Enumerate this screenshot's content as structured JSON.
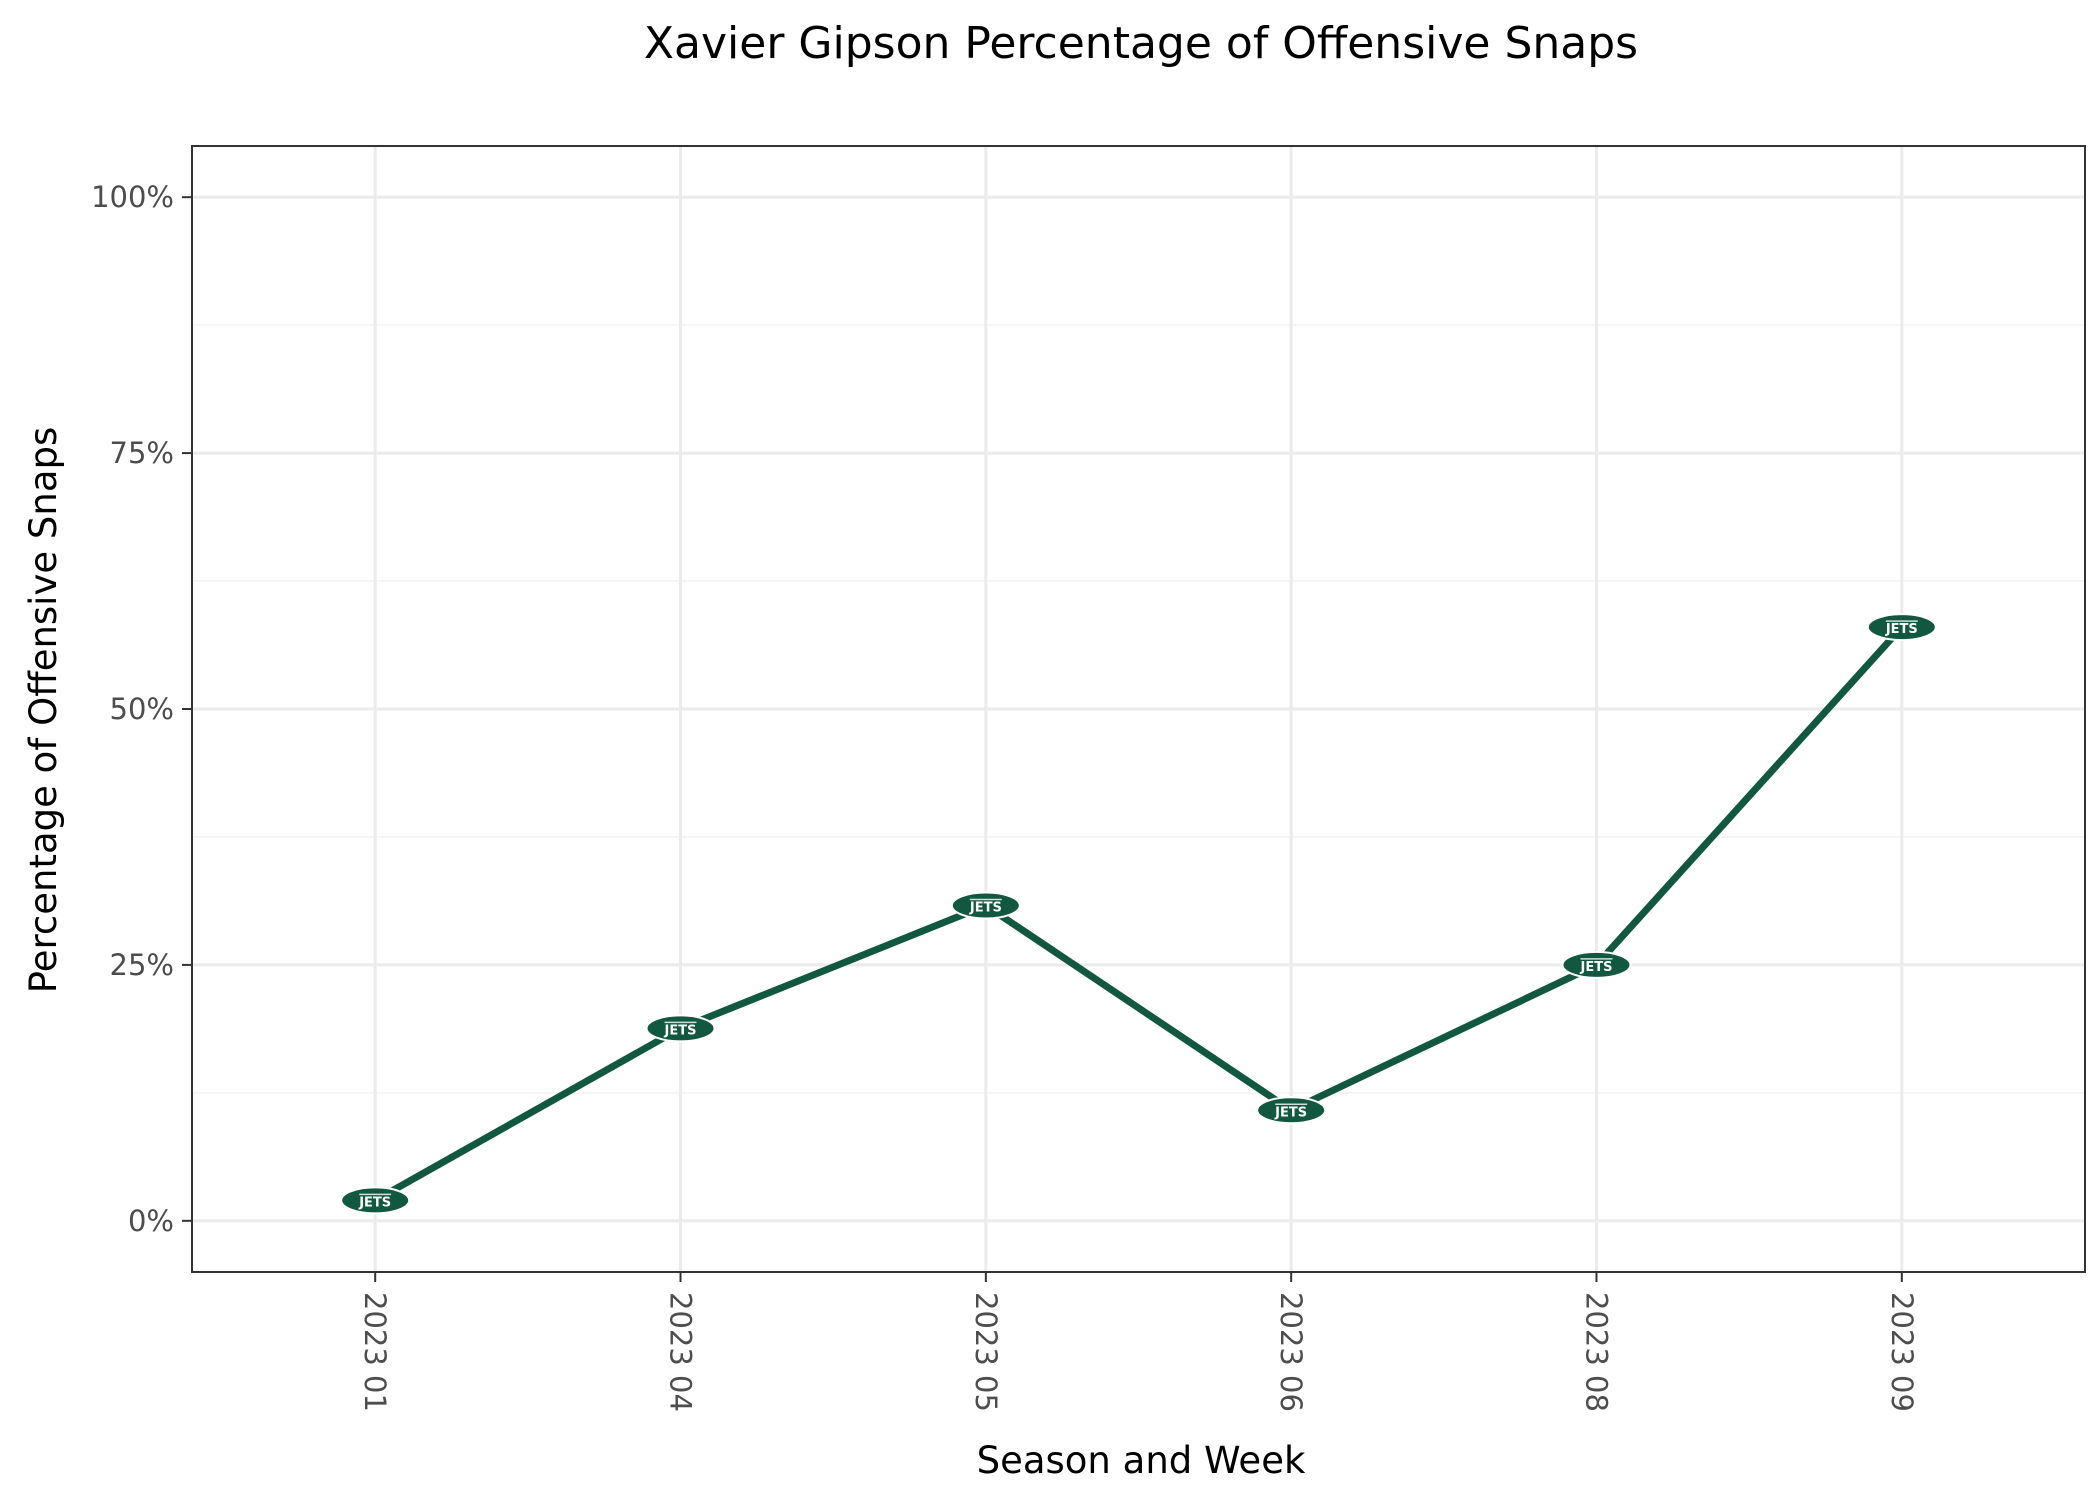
{
  "chart_data": {
    "type": "line",
    "title": "Xavier Gipson Percentage of Offensive Snaps",
    "xlabel": "Season and Week",
    "ylabel": "Percentage of Offensive Snaps",
    "categories": [
      "2023 01",
      "2023 04",
      "2023 05",
      "2023 06",
      "2023 08",
      "2023 09"
    ],
    "values": [
      0.02,
      0.188,
      0.308,
      0.108,
      0.25,
      0.58
    ],
    "ylim": [
      -0.05,
      1.05
    ],
    "yticks": [
      0,
      0.25,
      0.5,
      0.75,
      1.0
    ],
    "ytick_labels": [
      "0%",
      "25%",
      "50%",
      "75%",
      "100%"
    ],
    "grid": true,
    "marker": "team-logo",
    "marker_logo_text": "JETS",
    "colors": {
      "line": "#125740",
      "marker": "#125740",
      "grid_major": "#ebebeb",
      "grid_minor": "#f4f4f4",
      "panel_border": "#333333",
      "tick_text": "#4d4d4d"
    }
  }
}
